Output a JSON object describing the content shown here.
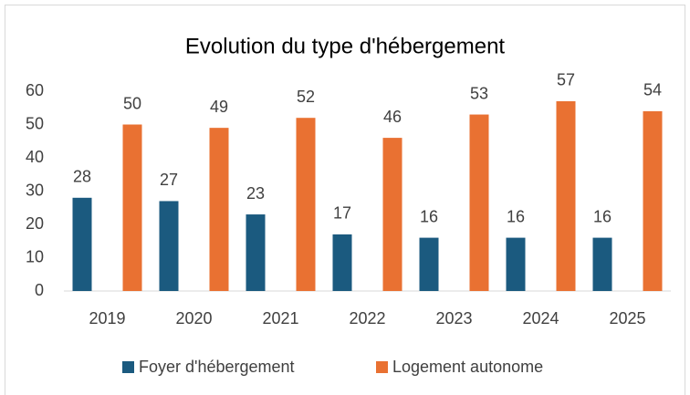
{
  "chart_data": {
    "type": "bar",
    "title": "Evolution du type d'hébergement",
    "categories": [
      "2019",
      "2020",
      "2021",
      "2022",
      "2023",
      "2024",
      "2025"
    ],
    "series": [
      {
        "name": "Foyer d'hébergement",
        "color": "#1b5a7f",
        "values": [
          28,
          27,
          23,
          17,
          16,
          16,
          16
        ]
      },
      {
        "name": "Logement autonome",
        "color": "#e97132",
        "values": [
          50,
          49,
          52,
          46,
          53,
          57,
          54
        ]
      }
    ],
    "ylim": [
      0,
      60
    ],
    "yticks": [
      0,
      10,
      20,
      30,
      40,
      50,
      60
    ],
    "grid": false,
    "legend": "bottom"
  }
}
